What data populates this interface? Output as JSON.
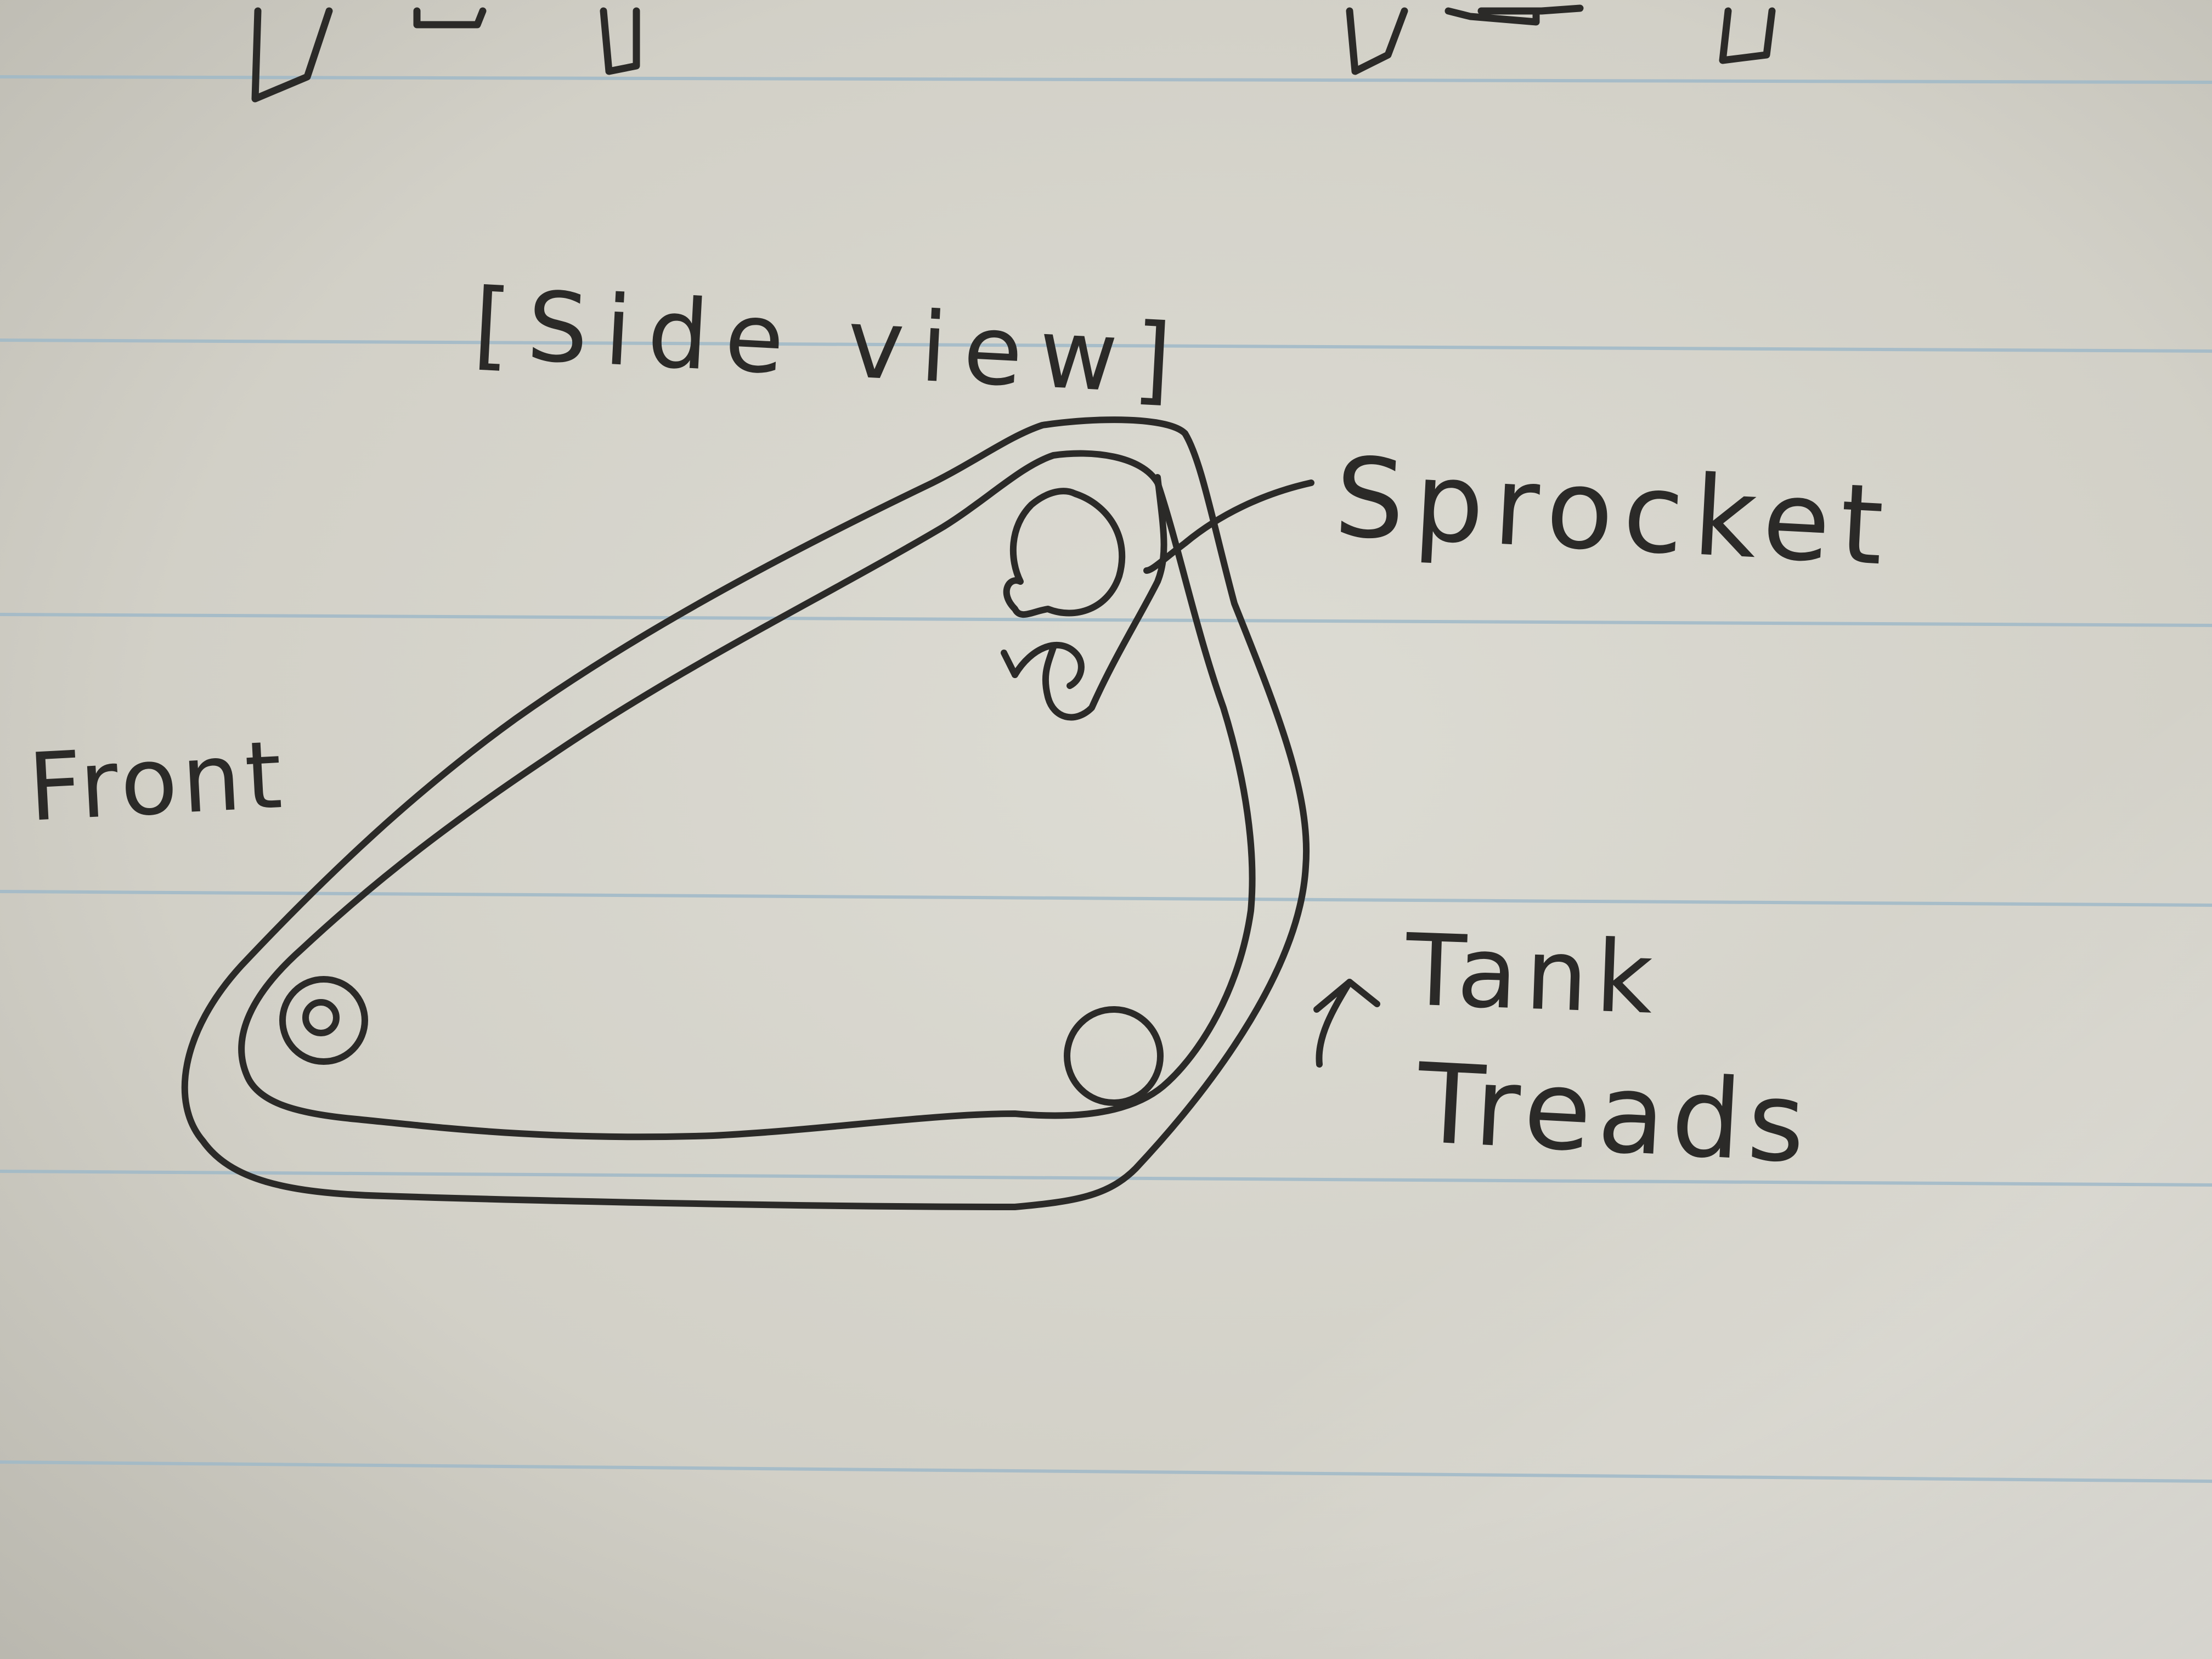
{
  "sketch": {
    "title": "[Side view]",
    "labels": {
      "front": "Front",
      "sprocket": "Sprocket",
      "tank_treads_line1": "Tank",
      "tank_treads_line2": "Treads"
    }
  },
  "colors": {
    "paper_light": "#dcdbd3",
    "paper_shadow": "#b9b7ae",
    "ruled_line": "#9fb9c8",
    "ink": "#2b2a28"
  }
}
